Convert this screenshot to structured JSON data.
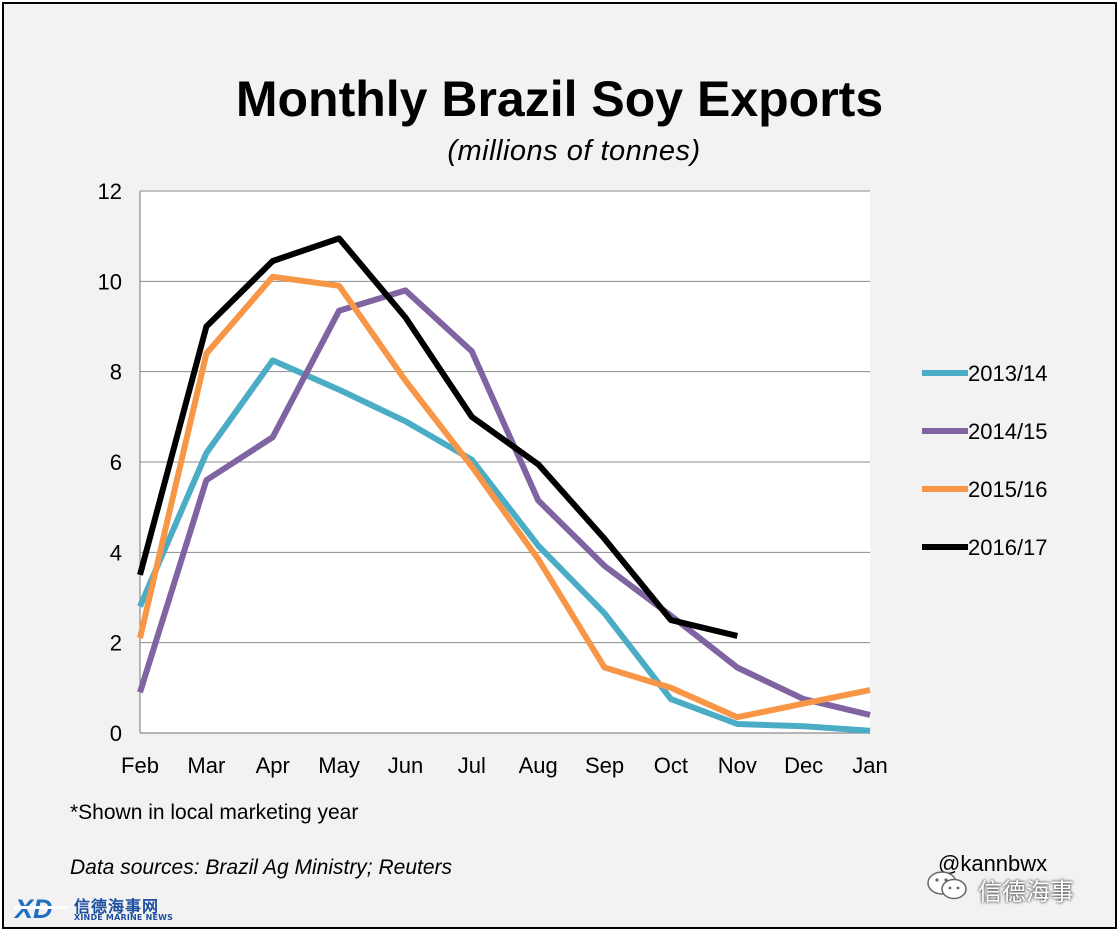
{
  "chart_data": {
    "type": "line",
    "title": "Monthly Brazil Soy Exports",
    "subtitle": "(millions  of tonnes)",
    "xlabel": "",
    "ylabel": "",
    "categories": [
      "Feb",
      "Mar",
      "Apr",
      "May",
      "Jun",
      "Jul",
      "Aug",
      "Sep",
      "Oct",
      "Nov",
      "Dec",
      "Jan"
    ],
    "ylim": [
      0,
      12
    ],
    "yticks": [
      0,
      2,
      4,
      6,
      8,
      10,
      12
    ],
    "grid": "horizontal",
    "legend_position": "right",
    "series": [
      {
        "name": "2013/14",
        "color": "#4bacc6",
        "values": [
          2.8,
          6.2,
          8.25,
          7.6,
          6.9,
          6.05,
          4.15,
          2.65,
          0.75,
          0.2,
          0.15,
          0.05
        ]
      },
      {
        "name": "2014/15",
        "color": "#8064a2",
        "values": [
          0.9,
          5.6,
          6.55,
          9.35,
          9.8,
          8.45,
          5.15,
          3.7,
          2.6,
          1.45,
          0.75,
          0.4
        ]
      },
      {
        "name": "2015/16",
        "color": "#f79646",
        "values": [
          2.1,
          8.4,
          10.1,
          9.9,
          7.8,
          5.9,
          3.85,
          1.45,
          1.0,
          0.35,
          0.65,
          0.95
        ]
      },
      {
        "name": "2016/17",
        "color": "#000000",
        "values": [
          3.5,
          9.0,
          10.45,
          10.95,
          9.2,
          7.0,
          5.95,
          4.3,
          2.5,
          2.15,
          null,
          null
        ]
      }
    ]
  },
  "footnote": "*Shown in local marketing year",
  "source": "Data sources: Brazil Ag Ministry; Reuters",
  "handle": "@kannbwx",
  "wechat_label": "信德海事",
  "logo": {
    "cn": "信德海事网",
    "en": "XINDE MARINE NEWS",
    "mark": "XD"
  }
}
